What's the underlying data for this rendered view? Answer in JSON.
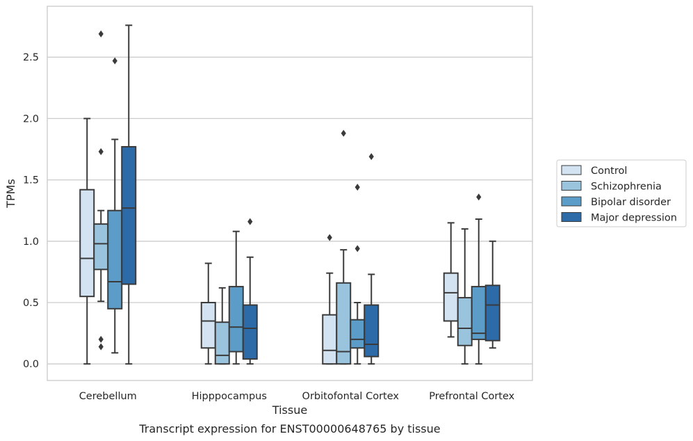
{
  "chart_data": {
    "type": "boxplot",
    "title": "",
    "caption": "Transcript expression for ENST00000648765 by tissue",
    "xlabel": "Tissue",
    "ylabel": "TPMs",
    "ylim": [
      -0.135,
      2.915
    ],
    "yticks": [
      "0.0",
      "0.5",
      "1.0",
      "1.5",
      "2.0",
      "2.5"
    ],
    "ytick_values": [
      0,
      0.5,
      1.0,
      1.5,
      2.0,
      2.5
    ],
    "grid": "horizontal",
    "legend_position": "right",
    "categories": [
      "Cerebellum",
      "Hipppocampus",
      "Orbitofontal Cortex",
      "Prefrontal Cortex"
    ],
    "series": [
      {
        "name": "Control",
        "color": "#d3e3f1",
        "boxes": [
          {
            "min": 0.0,
            "q1": 0.55,
            "median": 0.86,
            "q3": 1.42,
            "max": 2.0,
            "outliers": []
          },
          {
            "min": 0.0,
            "q1": 0.13,
            "median": 0.35,
            "q3": 0.5,
            "max": 0.82,
            "outliers": []
          },
          {
            "min": 0.0,
            "q1": 0.0,
            "median": 0.11,
            "q3": 0.4,
            "max": 0.74,
            "outliers": [
              1.03
            ]
          },
          {
            "min": 0.22,
            "q1": 0.35,
            "median": 0.58,
            "q3": 0.74,
            "max": 1.15,
            "outliers": []
          }
        ]
      },
      {
        "name": "Schizophrenia",
        "color": "#9ac3dd",
        "boxes": [
          {
            "min": 0.51,
            "q1": 0.77,
            "median": 0.98,
            "q3": 1.14,
            "max": 1.25,
            "outliers": [
              1.73,
              2.69,
              0.2,
              0.14
            ]
          },
          {
            "min": 0.0,
            "q1": 0.0,
            "median": 0.07,
            "q3": 0.34,
            "max": 0.62,
            "outliers": []
          },
          {
            "min": 0.0,
            "q1": 0.0,
            "median": 0.1,
            "q3": 0.66,
            "max": 0.93,
            "outliers": [
              1.88
            ]
          },
          {
            "min": 0.0,
            "q1": 0.15,
            "median": 0.29,
            "q3": 0.54,
            "max": 1.1,
            "outliers": []
          }
        ]
      },
      {
        "name": "Bipolar disorder",
        "color": "#5b9dc8",
        "boxes": [
          {
            "min": 0.09,
            "q1": 0.45,
            "median": 0.67,
            "q3": 1.25,
            "max": 1.83,
            "outliers": [
              2.47
            ]
          },
          {
            "min": 0.0,
            "q1": 0.1,
            "median": 0.3,
            "q3": 0.63,
            "max": 1.08,
            "outliers": []
          },
          {
            "min": 0.0,
            "q1": 0.13,
            "median": 0.2,
            "q3": 0.36,
            "max": 0.5,
            "outliers": [
              0.94,
              1.44
            ]
          },
          {
            "min": 0.0,
            "q1": 0.2,
            "median": 0.25,
            "q3": 0.63,
            "max": 1.18,
            "outliers": [
              1.36
            ]
          }
        ]
      },
      {
        "name": "Major depression",
        "color": "#2c6aa8",
        "boxes": [
          {
            "min": 0.0,
            "q1": 0.65,
            "median": 1.27,
            "q3": 1.77,
            "max": 2.76,
            "outliers": []
          },
          {
            "min": 0.0,
            "q1": 0.04,
            "median": 0.29,
            "q3": 0.48,
            "max": 0.87,
            "outliers": [
              1.16
            ]
          },
          {
            "min": 0.0,
            "q1": 0.06,
            "median": 0.16,
            "q3": 0.48,
            "max": 0.73,
            "outliers": [
              1.69
            ]
          },
          {
            "min": 0.13,
            "q1": 0.19,
            "median": 0.48,
            "q3": 0.64,
            "max": 1.0,
            "outliers": []
          }
        ]
      }
    ]
  }
}
